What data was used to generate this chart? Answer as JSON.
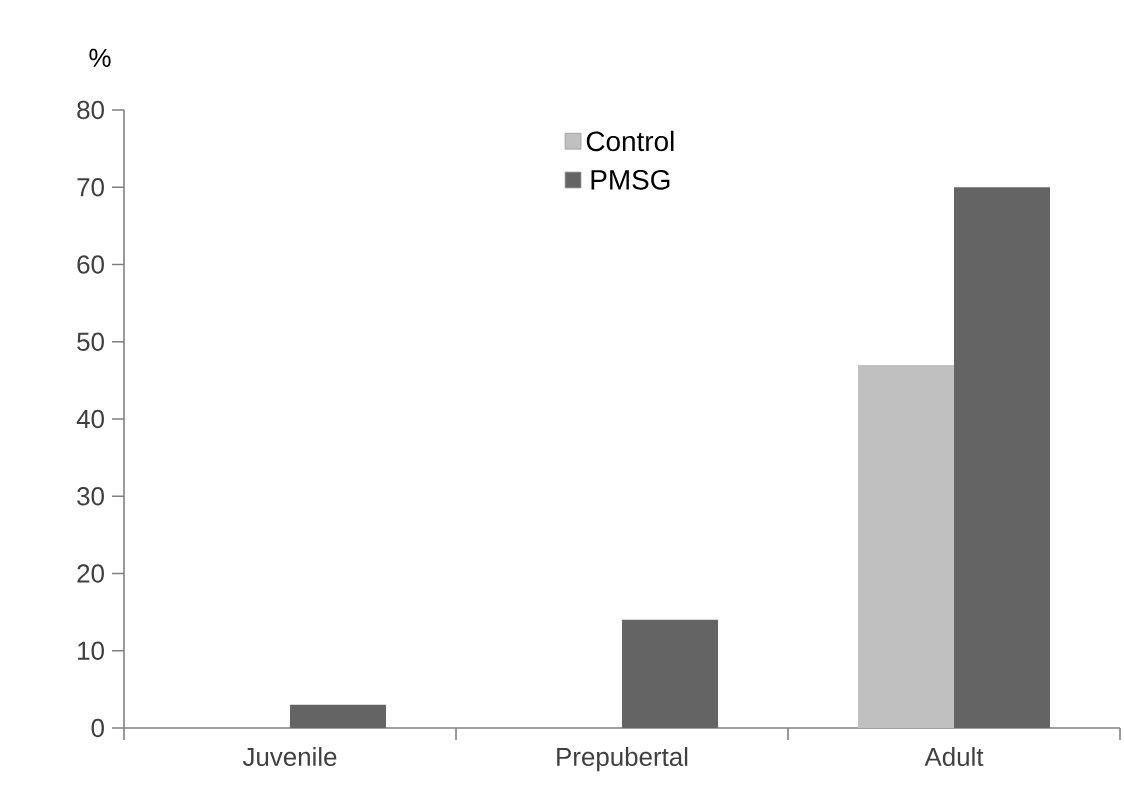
{
  "chart_data": {
    "type": "bar",
    "ylabel": "%",
    "categories": [
      "Juvenile",
      "Prepubertal",
      "Adult"
    ],
    "series": [
      {
        "name": "Control",
        "color": "#c0c0c0",
        "values": [
          0,
          0,
          47
        ]
      },
      {
        "name": "PMSG",
        "color": "#646464",
        "values": [
          3,
          14,
          70
        ]
      }
    ],
    "ylim": [
      0,
      80
    ],
    "yticks": [
      0,
      10,
      20,
      30,
      40,
      50,
      60,
      70,
      80
    ],
    "legend": "top",
    "grid": false
  }
}
